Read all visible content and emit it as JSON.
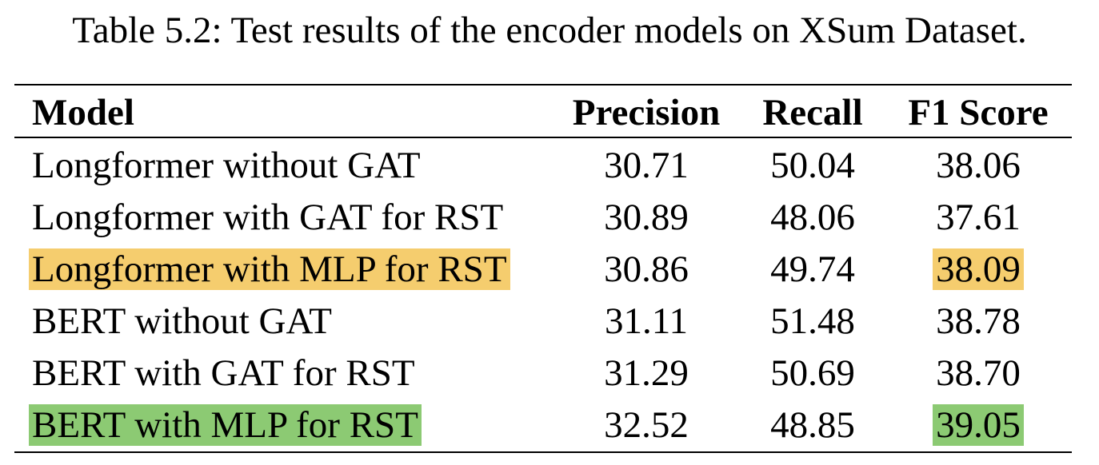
{
  "caption": "Table 5.2: Test results of the encoder models on XSum Dataset.",
  "table": {
    "headers": {
      "model": "Model",
      "precision": "Precision",
      "recall": "Recall",
      "f1": "F1 Score"
    },
    "rows": [
      {
        "model": "Longformer without GAT",
        "precision": "30.71",
        "recall": "50.04",
        "f1": "38.06"
      },
      {
        "model": "Longformer with GAT for RST",
        "precision": "30.89",
        "recall": "48.06",
        "f1": "37.61"
      },
      {
        "model": "Longformer with MLP for RST",
        "precision": "30.86",
        "recall": "49.74",
        "f1": "38.09"
      },
      {
        "model": "BERT without GAT",
        "precision": "31.11",
        "recall": "51.48",
        "f1": "38.78"
      },
      {
        "model": "BERT with GAT for RST",
        "precision": "31.29",
        "recall": "50.69",
        "f1": "38.70"
      },
      {
        "model": "BERT with MLP for RST",
        "precision": "32.52",
        "recall": "48.85",
        "f1": "39.05"
      }
    ]
  },
  "colors": {
    "highlight_yellow": "#f5cd6e",
    "highlight_green": "#8cca73"
  }
}
